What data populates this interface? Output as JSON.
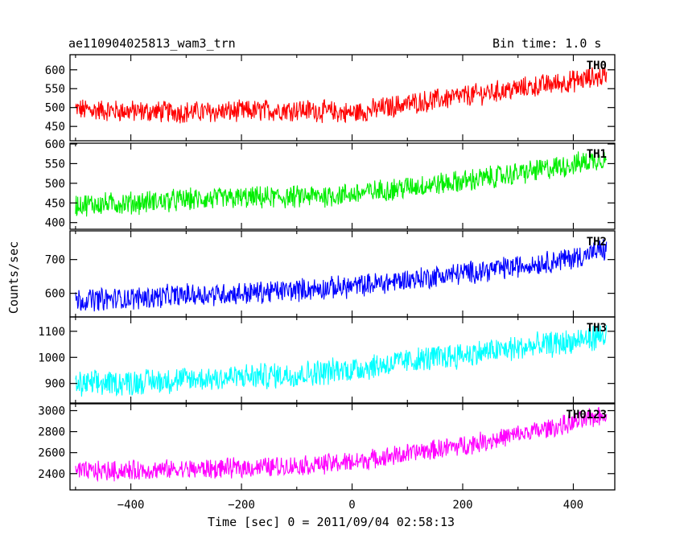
{
  "header": {
    "title": "ae110904025813_wam3_trn",
    "bin_time": "Bin time: 1.0 s"
  },
  "chart_data": {
    "type": "line",
    "xlabel": "Time [sec] 0 = 2011/09/04 02:58:13",
    "ylabel": "Counts/sec",
    "xlim": [
      -510,
      475
    ],
    "xticks": [
      -400,
      -200,
      0,
      200,
      400
    ],
    "panels": [
      {
        "name": "TH0",
        "color": "#ff0000",
        "ylim": [
          412,
          640
        ],
        "yticks": [
          450,
          500,
          550,
          600
        ],
        "start": 492,
        "end": 585,
        "noise": 26,
        "points": [
          [
            -500,
            495
          ],
          [
            -400,
            490
          ],
          [
            -300,
            488
          ],
          [
            -200,
            490
          ],
          [
            -100,
            495
          ],
          [
            0,
            485
          ],
          [
            100,
            510
          ],
          [
            200,
            530
          ],
          [
            300,
            550
          ],
          [
            400,
            570
          ],
          [
            460,
            585
          ]
        ]
      },
      {
        "name": "TH1",
        "color": "#00ee00",
        "ylim": [
          383,
          602
        ],
        "yticks": [
          400,
          450,
          500,
          550,
          600
        ],
        "start": 445,
        "end": 565,
        "noise": 26,
        "points": [
          [
            -500,
            445
          ],
          [
            -400,
            450
          ],
          [
            -300,
            458
          ],
          [
            -200,
            462
          ],
          [
            -100,
            465
          ],
          [
            0,
            472
          ],
          [
            100,
            490
          ],
          [
            200,
            505
          ],
          [
            300,
            525
          ],
          [
            400,
            548
          ],
          [
            460,
            565
          ]
        ]
      },
      {
        "name": "TH2",
        "color": "#0000ff",
        "ylim": [
          530,
          785
        ],
        "yticks": [
          600,
          700
        ],
        "start": 585,
        "end": 730,
        "noise": 30,
        "points": [
          [
            -500,
            580
          ],
          [
            -400,
            585
          ],
          [
            -300,
            595
          ],
          [
            -200,
            600
          ],
          [
            -100,
            610
          ],
          [
            0,
            620
          ],
          [
            100,
            640
          ],
          [
            200,
            660
          ],
          [
            300,
            680
          ],
          [
            400,
            705
          ],
          [
            460,
            730
          ]
        ]
      },
      {
        "name": "TH3",
        "color": "#00ffff",
        "ylim": [
          825,
          1155
        ],
        "yticks": [
          900,
          1000,
          1100
        ],
        "start": 895,
        "end": 1085,
        "noise": 45,
        "points": [
          [
            -500,
            895
          ],
          [
            -400,
            905
          ],
          [
            -300,
            915
          ],
          [
            -200,
            925
          ],
          [
            -100,
            935
          ],
          [
            0,
            955
          ],
          [
            100,
            985
          ],
          [
            200,
            1010
          ],
          [
            300,
            1035
          ],
          [
            400,
            1060
          ],
          [
            460,
            1085
          ]
        ]
      },
      {
        "name": "TH0123",
        "color": "#ff00ff",
        "ylim": [
          2245,
          3065
        ],
        "yticks": [
          2400,
          2600,
          2800,
          3000
        ],
        "start": 2420,
        "end": 2970,
        "noise": 85,
        "points": [
          [
            -500,
            2420
          ],
          [
            -400,
            2430
          ],
          [
            -300,
            2440
          ],
          [
            -200,
            2455
          ],
          [
            -100,
            2475
          ],
          [
            0,
            2510
          ],
          [
            100,
            2590
          ],
          [
            200,
            2670
          ],
          [
            300,
            2770
          ],
          [
            400,
            2880
          ],
          [
            460,
            2970
          ]
        ]
      }
    ]
  }
}
